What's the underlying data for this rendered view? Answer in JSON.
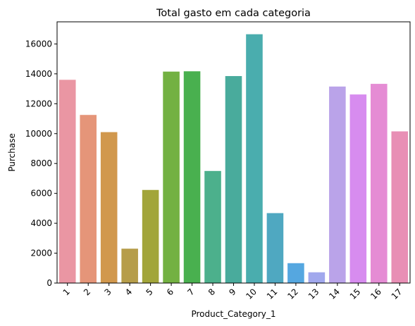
{
  "chart_data": {
    "type": "bar",
    "title": "Total gasto em cada categoria",
    "xlabel": "Product_Category_1",
    "ylabel": "Purchase",
    "categories": [
      "1",
      "2",
      "3",
      "4",
      "5",
      "6",
      "7",
      "8",
      "9",
      "10",
      "11",
      "12",
      "13",
      "14",
      "15",
      "16",
      "17"
    ],
    "values": [
      13600,
      11250,
      10100,
      2300,
      6230,
      14150,
      14170,
      7500,
      13850,
      16650,
      4680,
      1330,
      720,
      13150,
      12620,
      13330,
      10150
    ],
    "colors": [
      "#ea96a3",
      "#e59579",
      "#d1984d",
      "#b69d4a",
      "#a2a53a",
      "#73b142",
      "#49b04f",
      "#4cb08c",
      "#49ab9c",
      "#4aadae",
      "#4fa8c1",
      "#55a7e0",
      "#a1a8ed",
      "#baa3e9",
      "#d78cef",
      "#e58cd4",
      "#e88fb5"
    ],
    "yticks": [
      0,
      2000,
      4000,
      6000,
      8000,
      10000,
      12000,
      14000,
      16000
    ],
    "ylim": [
      0,
      17480
    ],
    "grid": false,
    "legend": "none"
  }
}
